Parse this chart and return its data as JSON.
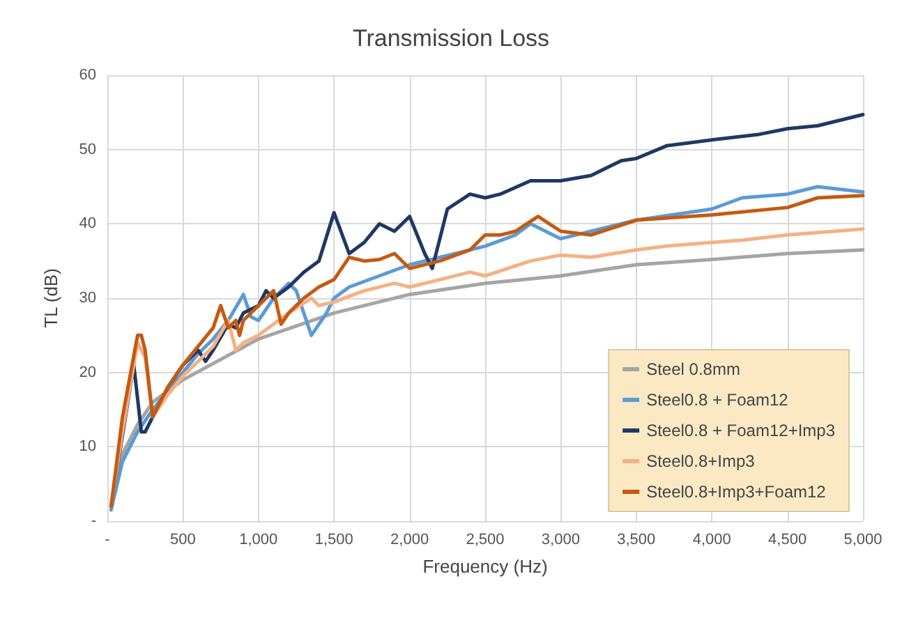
{
  "chart_data": {
    "type": "line",
    "title": "Transmission Loss",
    "xlabel": "Frequency (Hz)",
    "ylabel": "TL (dB)",
    "xlim": [
      0,
      5000
    ],
    "xticks": [
      {
        "value": 0,
        "label": "-"
      },
      {
        "value": 500,
        "label": "500"
      },
      {
        "value": 1000,
        "label": "1,000"
      },
      {
        "value": 1500,
        "label": "1,500"
      },
      {
        "value": 2000,
        "label": "2,000"
      },
      {
        "value": 2500,
        "label": "2,500"
      },
      {
        "value": 3000,
        "label": "3,000"
      },
      {
        "value": 3500,
        "label": "3,500"
      },
      {
        "value": 4000,
        "label": "4,000"
      },
      {
        "value": 4500,
        "label": "4,500"
      },
      {
        "value": 5000,
        "label": "5,000"
      }
    ],
    "ylim": [
      0,
      60
    ],
    "yticks": [
      {
        "value": 0,
        "label": "-"
      },
      10,
      20,
      30,
      40,
      50,
      60
    ],
    "grid": true,
    "legend": "bottom right",
    "marker": "none",
    "line_style": "solid",
    "series": [
      {
        "name": "Steel 0.8mm",
        "color": "#a5a5a5",
        "x": [
          25,
          100,
          200,
          300,
          500,
          1000,
          1500,
          2000,
          2500,
          3000,
          3500,
          4000,
          4500,
          5000
        ],
        "values": [
          2,
          9,
          13,
          16,
          19,
          24.5,
          28,
          30.5,
          32,
          33,
          34.5,
          35.2,
          36,
          36.5
        ]
      },
      {
        "name": "Steel0.8 + Foam12",
        "color": "#5b9bd5",
        "x": [
          25,
          100,
          200,
          300,
          400,
          500,
          600,
          700,
          800,
          900,
          950,
          1000,
          1100,
          1200,
          1250,
          1350,
          1450,
          1500,
          1600,
          1800,
          2000,
          2200,
          2500,
          2700,
          2800,
          3000,
          3200,
          3500,
          4000,
          4200,
          4500,
          4700,
          5000
        ],
        "values": [
          1.5,
          8,
          12,
          15,
          17.5,
          20,
          22.5,
          24.5,
          27,
          30.5,
          27.5,
          27,
          30,
          32,
          31,
          25,
          28,
          30,
          31.5,
          33,
          34.5,
          35.5,
          37,
          38.5,
          40,
          38,
          39,
          40.5,
          42,
          43.5,
          44,
          45,
          44.3
        ]
      },
      {
        "name": "Steel0.8 + Foam12+Imp3",
        "color": "#1f3864",
        "x": [
          25,
          175,
          225,
          250,
          300,
          400,
          500,
          600,
          650,
          700,
          800,
          850,
          900,
          1000,
          1050,
          1100,
          1200,
          1300,
          1400,
          1500,
          1600,
          1700,
          1800,
          1900,
          2000,
          2100,
          2150,
          2250,
          2400,
          2500,
          2600,
          2800,
          3000,
          3200,
          3400,
          3500,
          3700,
          4000,
          4300,
          4500,
          4700,
          5000
        ],
        "values": [
          2,
          21,
          12,
          12,
          14,
          18,
          21,
          23,
          21.5,
          23,
          26.5,
          26,
          28,
          29,
          31,
          30,
          31.5,
          33.5,
          35,
          41.5,
          36,
          37.5,
          40,
          39,
          41,
          36,
          34,
          42,
          44,
          43.5,
          44,
          45.8,
          45.8,
          46.5,
          48.5,
          48.8,
          50.5,
          51.3,
          52,
          52.8,
          53.2,
          54.7
        ]
      },
      {
        "name": "Steel0.8+Imp3",
        "color": "#f4b183",
        "x": [
          25,
          100,
          200,
          250,
          300,
          400,
          500,
          600,
          700,
          800,
          850,
          900,
          1000,
          1100,
          1200,
          1350,
          1400,
          1500,
          1700,
          1900,
          2000,
          2200,
          2400,
          2500,
          2800,
          3000,
          3200,
          3500,
          3700,
          4000,
          4200,
          4500,
          5000
        ],
        "values": [
          2,
          12,
          24,
          22,
          14,
          17,
          19.5,
          21.5,
          23.5,
          27,
          23,
          24,
          25,
          26.5,
          28,
          30,
          29,
          29.5,
          31,
          32,
          31.5,
          32.5,
          33.5,
          33,
          35,
          35.8,
          35.5,
          36.5,
          37,
          37.5,
          37.8,
          38.5,
          39.3
        ]
      },
      {
        "name": "Steel0.8+Imp3+Foam12",
        "color": "#c55a11",
        "x": [
          25,
          100,
          200,
          225,
          250,
          300,
          400,
          500,
          600,
          700,
          750,
          800,
          850,
          875,
          900,
          1000,
          1100,
          1150,
          1200,
          1300,
          1400,
          1500,
          1600,
          1700,
          1800,
          1900,
          2000,
          2200,
          2400,
          2500,
          2600,
          2700,
          2850,
          3000,
          3200,
          3500,
          4000,
          4500,
          4700,
          5000
        ],
        "values": [
          2,
          14,
          25,
          25,
          23,
          14,
          18,
          21,
          23.5,
          26,
          29,
          26,
          27,
          25,
          27,
          29,
          31,
          26.5,
          28,
          30,
          31.5,
          32.5,
          35.5,
          35,
          35.2,
          36,
          34,
          35,
          36.5,
          38.5,
          38.5,
          39,
          41,
          39,
          38.5,
          40.5,
          41.2,
          42.2,
          43.5,
          43.8
        ]
      }
    ]
  }
}
